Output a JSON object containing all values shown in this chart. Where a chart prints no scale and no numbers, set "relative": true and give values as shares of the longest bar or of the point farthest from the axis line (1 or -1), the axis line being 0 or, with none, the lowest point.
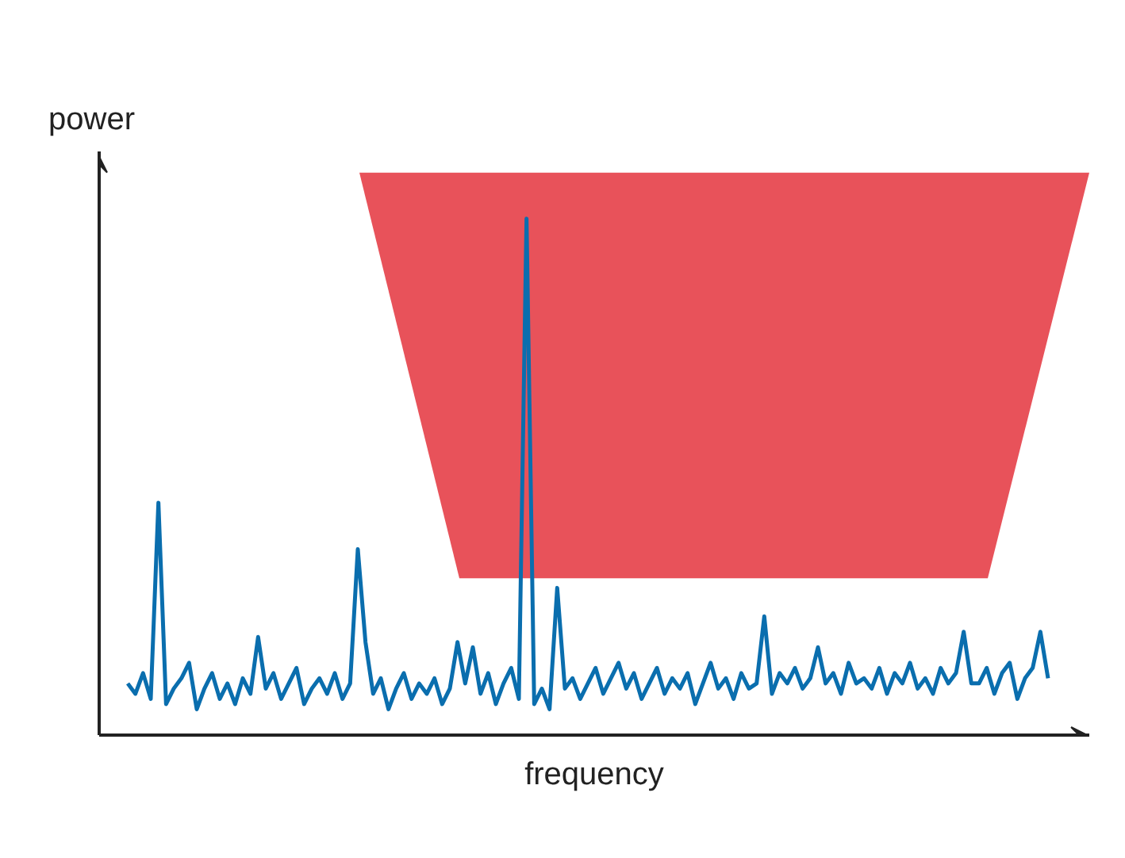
{
  "chart_data": {
    "type": "line",
    "relative": true,
    "xlabel": "frequency",
    "ylabel": "power",
    "categories": [
      null,
      null,
      null,
      null,
      null,
      null,
      null,
      null,
      null,
      null,
      null,
      null,
      null,
      null,
      null,
      null,
      null,
      null,
      null,
      null,
      null,
      null,
      null,
      null,
      null,
      null,
      null,
      null,
      null,
      null,
      null,
      null,
      null,
      null,
      null,
      null,
      null,
      null,
      null,
      null,
      null,
      null,
      null,
      null,
      null,
      null,
      null,
      null,
      null,
      null,
      null,
      null,
      null,
      null,
      null,
      null,
      null,
      null,
      null,
      null,
      null,
      null,
      null,
      null,
      null,
      null,
      null,
      null,
      null,
      null,
      null,
      null,
      null,
      null,
      null,
      null,
      null,
      null,
      null,
      null,
      null,
      null,
      null,
      null,
      null,
      null,
      null,
      null,
      null,
      null,
      null,
      null,
      null,
      null,
      null,
      null,
      null,
      null,
      null,
      null,
      null,
      null,
      null,
      null,
      null,
      null,
      null,
      null,
      null,
      null,
      null,
      null,
      null,
      null,
      null,
      null,
      null,
      null,
      null,
      null,
      null
    ],
    "series": [
      {
        "color": "#0a6eae",
        "values": [
          0.1,
          0.08,
          0.12,
          0.07,
          0.45,
          0.06,
          0.09,
          0.11,
          0.14,
          0.05,
          0.09,
          0.12,
          0.07,
          0.1,
          0.06,
          0.11,
          0.08,
          0.19,
          0.09,
          0.12,
          0.07,
          0.1,
          0.13,
          0.06,
          0.09,
          0.11,
          0.08,
          0.12,
          0.07,
          0.1,
          0.36,
          0.18,
          0.08,
          0.11,
          0.05,
          0.09,
          0.12,
          0.07,
          0.1,
          0.08,
          0.11,
          0.06,
          0.09,
          0.18,
          0.1,
          0.17,
          0.08,
          0.12,
          0.06,
          0.1,
          0.13,
          0.07,
          1.0,
          0.06,
          0.09,
          0.05,
          0.285,
          0.09,
          0.11,
          0.07,
          0.1,
          0.13,
          0.08,
          0.11,
          0.14,
          0.09,
          0.12,
          0.07,
          0.1,
          0.13,
          0.08,
          0.11,
          0.09,
          0.12,
          0.06,
          0.1,
          0.14,
          0.09,
          0.11,
          0.07,
          0.12,
          0.09,
          0.1,
          0.23,
          0.08,
          0.12,
          0.1,
          0.13,
          0.09,
          0.11,
          0.17,
          0.1,
          0.12,
          0.08,
          0.14,
          0.1,
          0.11,
          0.09,
          0.13,
          0.08,
          0.12,
          0.1,
          0.14,
          0.09,
          0.11,
          0.08,
          0.13,
          0.1,
          0.12,
          0.2,
          0.1,
          0.1,
          0.13,
          0.08,
          0.12,
          0.14,
          0.07,
          0.11,
          0.13,
          0.2,
          0.11
        ]
      }
    ]
  }
}
